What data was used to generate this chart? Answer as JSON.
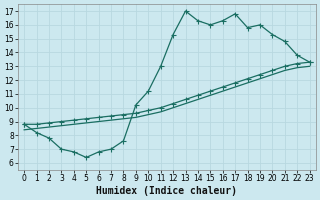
{
  "xlabel": "Humidex (Indice chaleur)",
  "xlim": [
    -0.5,
    23.5
  ],
  "ylim": [
    5.5,
    17.5
  ],
  "xticks": [
    0,
    1,
    2,
    3,
    4,
    5,
    6,
    7,
    8,
    9,
    10,
    11,
    12,
    13,
    14,
    15,
    16,
    17,
    18,
    19,
    20,
    21,
    22,
    23
  ],
  "yticks": [
    6,
    7,
    8,
    9,
    10,
    11,
    12,
    13,
    14,
    15,
    16,
    17
  ],
  "bg_color": "#cce8ef",
  "line_color": "#1a6e62",
  "grid_color": "#b8d8e0",
  "line1_x": [
    0,
    1,
    2,
    3,
    4,
    5,
    6,
    7,
    8,
    9,
    10,
    11,
    12,
    13,
    14,
    15,
    16,
    17,
    18,
    19,
    20,
    21,
    22,
    23
  ],
  "line1_y": [
    8.8,
    8.2,
    7.8,
    7.0,
    6.8,
    6.4,
    6.8,
    7.0,
    7.6,
    10.2,
    11.2,
    13.0,
    15.3,
    17.0,
    16.3,
    16.0,
    16.3,
    16.8,
    15.8,
    16.0,
    15.3,
    14.8,
    13.8,
    13.3
  ],
  "line2_x": [
    0,
    1,
    2,
    3,
    4,
    5,
    6,
    7,
    8,
    9,
    10,
    11,
    12,
    13,
    14,
    15,
    16,
    17,
    18,
    19,
    20,
    21,
    22,
    23
  ],
  "line2_y": [
    8.8,
    8.8,
    8.9,
    9.0,
    9.1,
    9.2,
    9.3,
    9.4,
    9.5,
    9.6,
    9.8,
    10.0,
    10.3,
    10.6,
    10.9,
    11.2,
    11.5,
    11.8,
    12.1,
    12.4,
    12.7,
    13.0,
    13.2,
    13.3
  ],
  "line3_x": [
    0,
    1,
    2,
    3,
    4,
    5,
    6,
    7,
    8,
    9,
    10,
    11,
    12,
    13,
    14,
    15,
    16,
    17,
    18,
    19,
    20,
    21,
    22,
    23
  ],
  "line3_y": [
    8.4,
    8.5,
    8.6,
    8.7,
    8.8,
    8.9,
    9.0,
    9.1,
    9.2,
    9.3,
    9.5,
    9.7,
    10.0,
    10.3,
    10.6,
    10.9,
    11.2,
    11.5,
    11.8,
    12.1,
    12.4,
    12.7,
    12.9,
    13.0
  ],
  "figsize": [
    3.2,
    2.0
  ],
  "dpi": 100,
  "tick_fontsize": 5.5,
  "xlabel_fontsize": 7
}
